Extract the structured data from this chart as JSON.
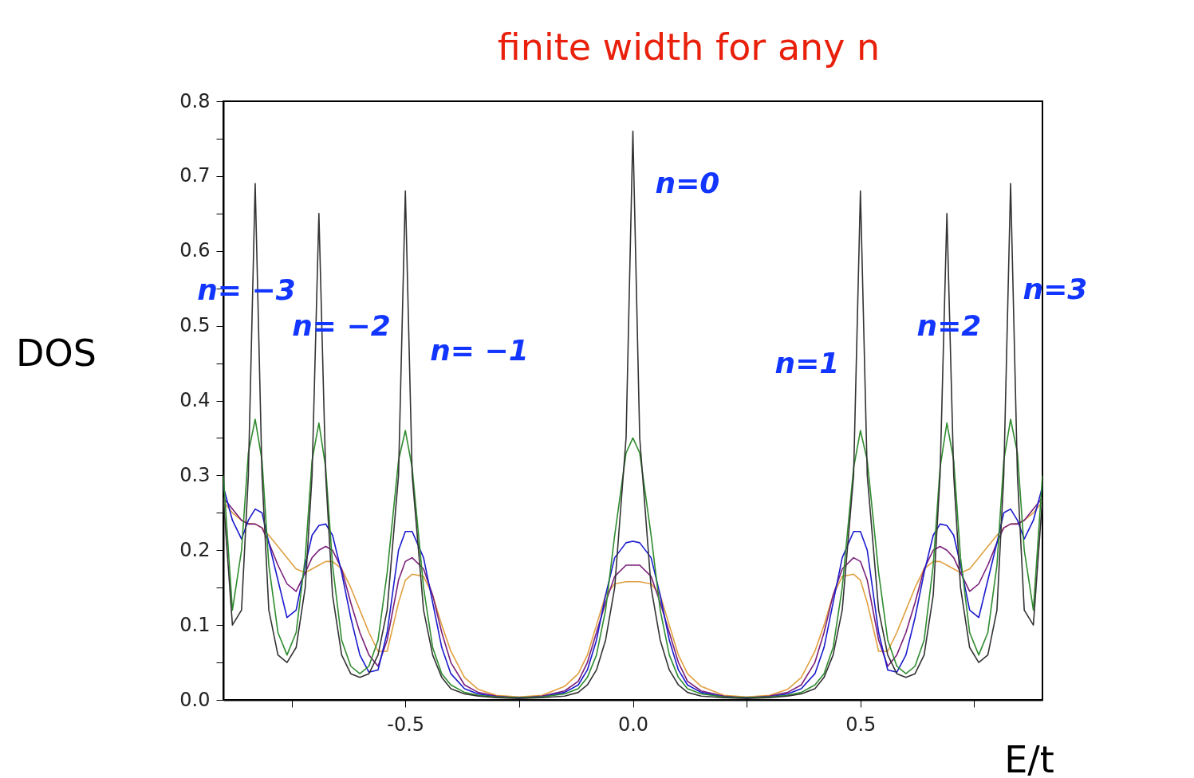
{
  "chart_data": {
    "type": "line",
    "title": "finite width for any n",
    "xlabel": "E/t",
    "ylabel": "DOS",
    "x": [
      -0.9,
      -0.88,
      -0.86,
      -0.845,
      -0.83,
      -0.815,
      -0.8,
      -0.78,
      -0.76,
      -0.74,
      -0.72,
      -0.705,
      -0.69,
      -0.675,
      -0.66,
      -0.64,
      -0.62,
      -0.6,
      -0.58,
      -0.56,
      -0.54,
      -0.515,
      -0.5,
      -0.485,
      -0.46,
      -0.44,
      -0.42,
      -0.4,
      -0.37,
      -0.34,
      -0.3,
      -0.25,
      -0.2,
      -0.15,
      -0.12,
      -0.1,
      -0.08,
      -0.06,
      -0.04,
      -0.015,
      0,
      0.015,
      0.04,
      0.06,
      0.08,
      0.1,
      0.12,
      0.15,
      0.2,
      0.25,
      0.3,
      0.34,
      0.37,
      0.4,
      0.42,
      0.44,
      0.46,
      0.485,
      0.5,
      0.515,
      0.54,
      0.56,
      0.58,
      0.6,
      0.62,
      0.64,
      0.66,
      0.675,
      0.69,
      0.705,
      0.72,
      0.74,
      0.76,
      0.78,
      0.8,
      0.815,
      0.83,
      0.845,
      0.86,
      0.88,
      0.9
    ],
    "series": [
      {
        "color": "#e0a040",
        "values": [
          0.265,
          0.25,
          0.24,
          0.236,
          0.235,
          0.23,
          0.22,
          0.205,
          0.19,
          0.175,
          0.17,
          0.175,
          0.18,
          0.185,
          0.185,
          0.175,
          0.15,
          0.12,
          0.09,
          0.065,
          0.065,
          0.13,
          0.16,
          0.168,
          0.165,
          0.14,
          0.1,
          0.065,
          0.03,
          0.014,
          0.006,
          0.004,
          0.006,
          0.018,
          0.035,
          0.06,
          0.1,
          0.14,
          0.155,
          0.158,
          0.158,
          0.158,
          0.155,
          0.14,
          0.1,
          0.06,
          0.035,
          0.018,
          0.006,
          0.004,
          0.006,
          0.014,
          0.03,
          0.065,
          0.1,
          0.14,
          0.165,
          0.168,
          0.16,
          0.13,
          0.065,
          0.065,
          0.09,
          0.12,
          0.15,
          0.175,
          0.185,
          0.185,
          0.18,
          0.175,
          0.17,
          0.175,
          0.19,
          0.205,
          0.22,
          0.23,
          0.235,
          0.236,
          0.24,
          0.25,
          0.265
        ]
      },
      {
        "color": "#7a1f7a",
        "values": [
          0.27,
          0.255,
          0.24,
          0.235,
          0.235,
          0.23,
          0.21,
          0.18,
          0.155,
          0.145,
          0.17,
          0.19,
          0.2,
          0.205,
          0.2,
          0.175,
          0.13,
          0.09,
          0.06,
          0.045,
          0.08,
          0.16,
          0.185,
          0.19,
          0.175,
          0.14,
          0.09,
          0.05,
          0.02,
          0.01,
          0.005,
          0.003,
          0.005,
          0.012,
          0.025,
          0.05,
          0.09,
          0.13,
          0.165,
          0.18,
          0.18,
          0.18,
          0.165,
          0.13,
          0.09,
          0.05,
          0.025,
          0.012,
          0.005,
          0.003,
          0.005,
          0.01,
          0.02,
          0.05,
          0.09,
          0.14,
          0.175,
          0.19,
          0.185,
          0.16,
          0.08,
          0.045,
          0.06,
          0.09,
          0.13,
          0.175,
          0.2,
          0.205,
          0.2,
          0.19,
          0.17,
          0.145,
          0.155,
          0.18,
          0.21,
          0.23,
          0.235,
          0.235,
          0.24,
          0.255,
          0.27
        ]
      },
      {
        "color": "#1a1acc",
        "values": [
          0.285,
          0.24,
          0.215,
          0.24,
          0.255,
          0.25,
          0.21,
          0.16,
          0.11,
          0.12,
          0.18,
          0.22,
          0.233,
          0.235,
          0.22,
          0.17,
          0.11,
          0.06,
          0.037,
          0.04,
          0.09,
          0.2,
          0.225,
          0.225,
          0.19,
          0.13,
          0.07,
          0.035,
          0.015,
          0.008,
          0.004,
          0.003,
          0.004,
          0.01,
          0.02,
          0.04,
          0.08,
          0.14,
          0.19,
          0.21,
          0.212,
          0.21,
          0.19,
          0.14,
          0.08,
          0.04,
          0.02,
          0.01,
          0.004,
          0.003,
          0.004,
          0.008,
          0.015,
          0.035,
          0.07,
          0.13,
          0.19,
          0.225,
          0.225,
          0.2,
          0.09,
          0.04,
          0.037,
          0.06,
          0.11,
          0.17,
          0.22,
          0.235,
          0.233,
          0.22,
          0.18,
          0.12,
          0.11,
          0.16,
          0.21,
          0.25,
          0.255,
          0.24,
          0.215,
          0.24,
          0.285
        ]
      },
      {
        "color": "#2e8b2e",
        "values": [
          0.3,
          0.12,
          0.2,
          0.33,
          0.375,
          0.32,
          0.18,
          0.09,
          0.06,
          0.09,
          0.19,
          0.32,
          0.37,
          0.31,
          0.18,
          0.08,
          0.045,
          0.035,
          0.045,
          0.08,
          0.17,
          0.32,
          0.36,
          0.31,
          0.15,
          0.07,
          0.035,
          0.02,
          0.01,
          0.006,
          0.004,
          0.003,
          0.004,
          0.008,
          0.015,
          0.03,
          0.06,
          0.12,
          0.22,
          0.33,
          0.35,
          0.33,
          0.22,
          0.12,
          0.06,
          0.03,
          0.015,
          0.008,
          0.004,
          0.003,
          0.004,
          0.006,
          0.01,
          0.02,
          0.035,
          0.07,
          0.15,
          0.31,
          0.36,
          0.32,
          0.17,
          0.08,
          0.045,
          0.035,
          0.045,
          0.08,
          0.18,
          0.31,
          0.37,
          0.32,
          0.19,
          0.09,
          0.06,
          0.09,
          0.18,
          0.32,
          0.375,
          0.33,
          0.2,
          0.12,
          0.3
        ]
      },
      {
        "color": "#333333",
        "values": [
          0.27,
          0.1,
          0.12,
          0.3,
          0.69,
          0.3,
          0.12,
          0.06,
          0.05,
          0.07,
          0.15,
          0.3,
          0.65,
          0.3,
          0.14,
          0.06,
          0.035,
          0.03,
          0.035,
          0.06,
          0.12,
          0.3,
          0.68,
          0.3,
          0.12,
          0.06,
          0.03,
          0.015,
          0.008,
          0.005,
          0.003,
          0.002,
          0.003,
          0.005,
          0.01,
          0.02,
          0.04,
          0.08,
          0.15,
          0.35,
          0.76,
          0.35,
          0.15,
          0.08,
          0.04,
          0.02,
          0.01,
          0.005,
          0.003,
          0.002,
          0.003,
          0.005,
          0.008,
          0.015,
          0.03,
          0.06,
          0.12,
          0.3,
          0.68,
          0.3,
          0.12,
          0.06,
          0.035,
          0.03,
          0.035,
          0.06,
          0.14,
          0.3,
          0.65,
          0.3,
          0.15,
          0.07,
          0.05,
          0.06,
          0.12,
          0.3,
          0.69,
          0.3,
          0.12,
          0.1,
          0.27
        ]
      }
    ],
    "xlim": [
      -0.9,
      0.9
    ],
    "xticks": [
      {
        "value": -0.75,
        "label": null
      },
      -0.5,
      {
        "value": -0.25,
        "label": null
      },
      {
        "value": 0,
        "label": "0.0"
      },
      {
        "value": 0.25,
        "label": null
      },
      0.5,
      {
        "value": 0.75,
        "label": null
      }
    ],
    "ylim": [
      0,
      0.8
    ],
    "yticks": [
      {
        "value": 0,
        "label": "0.0"
      },
      {
        "value": 0.05,
        "label": null
      },
      0.1,
      {
        "value": 0.15,
        "label": null
      },
      0.2,
      {
        "value": 0.25,
        "label": null
      },
      0.3,
      {
        "value": 0.35,
        "label": null
      },
      0.4,
      {
        "value": 0.45,
        "label": null
      },
      0.5,
      {
        "value": 0.55,
        "label": null
      },
      0.6,
      {
        "value": 0.65,
        "label": null
      },
      0.7,
      {
        "value": 0.75,
        "label": null
      },
      0.8
    ],
    "annotations": [
      "n= −3",
      "n= −2",
      "n= −1",
      "n=0",
      "n=1",
      "n=2",
      "n=3"
    ]
  }
}
